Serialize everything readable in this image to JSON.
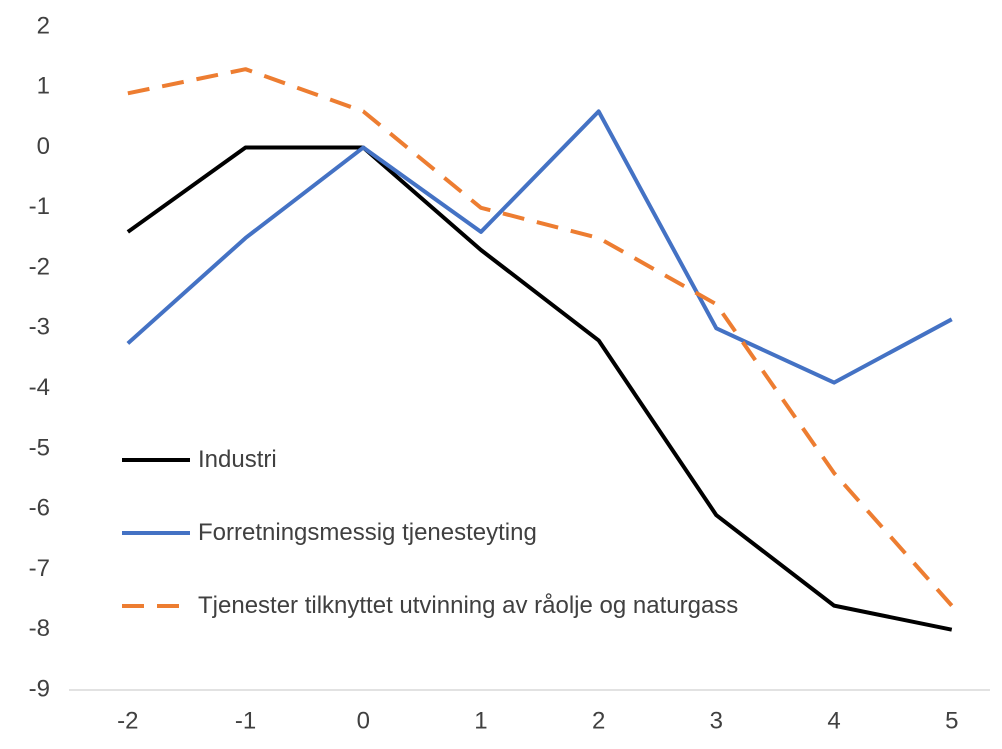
{
  "chart_data": {
    "type": "line",
    "categories": [
      "-2",
      "-1",
      "0",
      "1",
      "2",
      "3",
      "4",
      "5"
    ],
    "series": [
      {
        "name": "Industri",
        "color": "#000000",
        "dash": false,
        "values": [
          -1.4,
          0,
          0,
          -1.7,
          -3.2,
          -6.1,
          -7.6,
          -8.0
        ]
      },
      {
        "name": "Forretningsmessig tjenesteyting",
        "color": "#4472c4",
        "dash": false,
        "values": [
          -3.25,
          -1.5,
          0,
          -1.4,
          0.6,
          -3.0,
          -3.9,
          -2.85
        ]
      },
      {
        "name": "Tjenester tilknyttet utvinning av råolje og naturgass",
        "color": "#ed7d31",
        "dash": true,
        "values": [
          0.9,
          1.3,
          0.6,
          -1.0,
          -1.5,
          -2.6,
          -5.4,
          -7.6
        ]
      }
    ],
    "ylim": [
      -9,
      2
    ],
    "yticks": [
      -9,
      -8,
      -7,
      -6,
      -5,
      -4,
      -3,
      -2,
      -1,
      0,
      1,
      2
    ],
    "grid": false,
    "legend": "lower-left"
  }
}
